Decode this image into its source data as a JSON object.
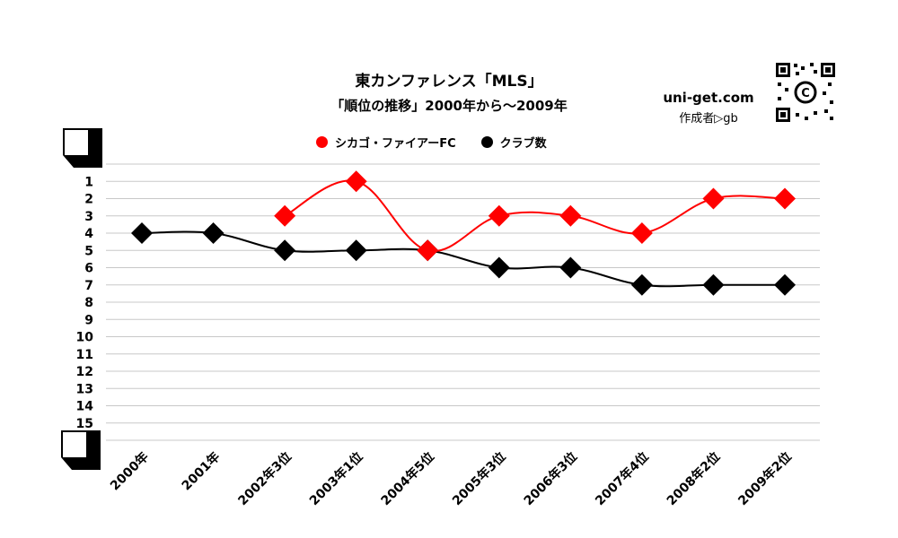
{
  "header": {
    "title": "東カンファレンス「MLS」",
    "subtitle": "「順位の推移」2000年から～2009年",
    "site": "uni-get.com",
    "author": "作成者▷gb",
    "qr_icon": "qr-code-icon"
  },
  "colors": {
    "chicago": "#ff0000",
    "clubs": "#000000",
    "grid": "#c8c8c8"
  },
  "chart_data": {
    "type": "line",
    "title": "東カンファレンス「MLS」",
    "subtitle": "「順位の推移」2000年から～2009年",
    "categories": [
      "2000年",
      "2001年",
      "2002年3位",
      "2003年1位",
      "2004年5位",
      "2005年3位",
      "2006年3位",
      "2007年4位",
      "2008年2位",
      "2009年2位"
    ],
    "y_ticks": [
      "1",
      "2",
      "3",
      "4",
      "5",
      "6",
      "7",
      "8",
      "9",
      "10",
      "11",
      "12",
      "13",
      "14",
      "15"
    ],
    "ylim": [
      0,
      16
    ],
    "y_inverted": true,
    "grid": true,
    "legend_position": "top",
    "series": [
      {
        "name": "シカゴ・ファイアーFC",
        "color": "#ff0000",
        "values": [
          null,
          null,
          3,
          1,
          5,
          3,
          3,
          4,
          2,
          2
        ]
      },
      {
        "name": "クラブ数",
        "color": "#000000",
        "values": [
          4,
          4,
          5,
          5,
          5,
          6,
          6,
          7,
          7,
          7
        ]
      }
    ]
  }
}
